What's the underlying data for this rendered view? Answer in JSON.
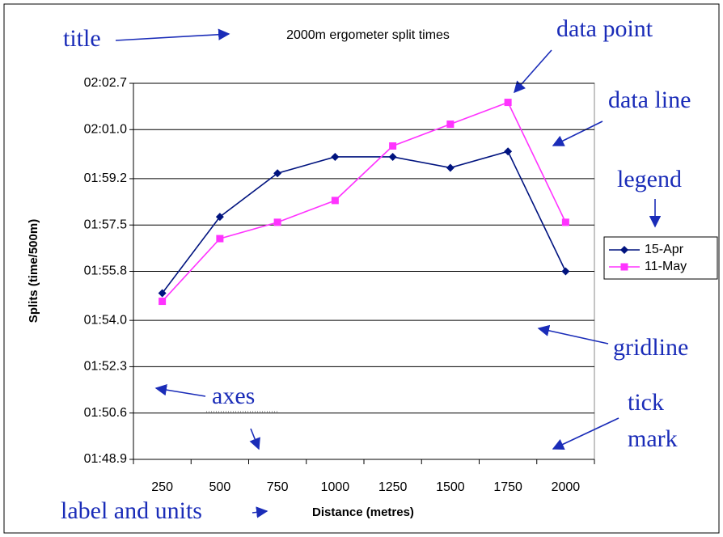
{
  "chart_data": {
    "type": "line",
    "title": "2000m ergometer split times",
    "x_label": "Distance (metres)",
    "y_label": "Splits (time/500m)",
    "categories": [
      "250",
      "500",
      "750",
      "1000",
      "1250",
      "1500",
      "1750",
      "2000"
    ],
    "series": [
      {
        "name": "15-Apr",
        "color": "#00137f",
        "marker": "diamond",
        "values": [
          115.0,
          117.8,
          119.4,
          120.0,
          120.0,
          119.6,
          120.2,
          115.8
        ]
      },
      {
        "name": "11-May",
        "color": "#ff33ff",
        "marker": "square",
        "values": [
          114.7,
          117.0,
          117.6,
          118.4,
          120.4,
          121.2,
          122.0,
          117.6
        ]
      }
    ],
    "ylim": [
      108.9,
      122.7
    ],
    "yticks": [
      {
        "value": 108.9,
        "label": "01:48.9"
      },
      {
        "value": 110.6,
        "label": "01:50.6"
      },
      {
        "value": 112.3,
        "label": "01:52.3"
      },
      {
        "value": 114.0,
        "label": "01:54.0"
      },
      {
        "value": 115.8,
        "label": "01:55.8"
      },
      {
        "value": 117.5,
        "label": "01:57.5"
      },
      {
        "value": 119.2,
        "label": "01:59.2"
      },
      {
        "value": 121.0,
        "label": "02:01.0"
      },
      {
        "value": 122.7,
        "label": "02:02.7"
      }
    ],
    "grid": true,
    "legend": "right",
    "annotations": [
      {
        "lines": [
          "title"
        ]
      },
      {
        "lines": [
          "data point"
        ]
      },
      {
        "lines": [
          "data line"
        ]
      },
      {
        "lines": [
          "legend"
        ]
      },
      {
        "lines": [
          "gridline"
        ]
      },
      {
        "lines": [
          "axes"
        ]
      },
      {
        "lines": [
          "tick",
          "mark"
        ]
      },
      {
        "lines": [
          "label and units"
        ]
      }
    ]
  }
}
